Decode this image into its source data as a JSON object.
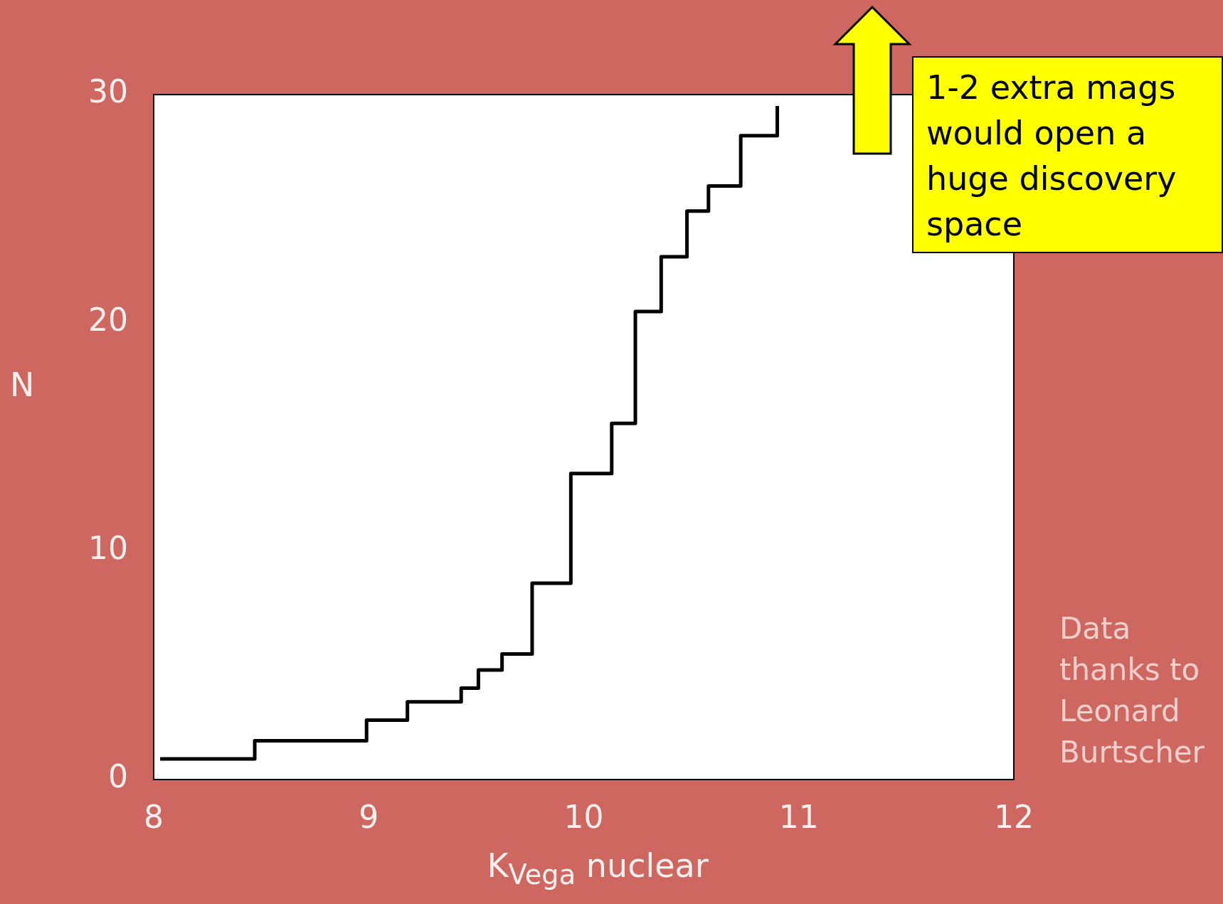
{
  "chart_data": {
    "type": "step",
    "xlabel": "K$_{Vega}$ nuclear",
    "ylabel": "N",
    "x": [
      8.03,
      8.47,
      8.99,
      9.18,
      9.43,
      9.51,
      9.62,
      9.76,
      9.94,
      10.13,
      10.24,
      10.36,
      10.48,
      10.58,
      10.73,
      10.9
    ],
    "series": [
      {
        "color": "#000000",
        "values": [
          0.9,
          1.7,
          2.6,
          3.4,
          4.0,
          4.8,
          5.5,
          8.6,
          13.4,
          15.6,
          20.5,
          22.9,
          24.9,
          26.0,
          28.2,
          29.5
        ]
      }
    ],
    "xlim": [
      8,
      12
    ],
    "xticks": [
      8,
      9,
      10,
      11,
      12
    ],
    "ylim": [
      0,
      30
    ],
    "yticks": [
      0,
      10,
      20,
      30
    ],
    "grid": false,
    "legend": false,
    "marker": "none",
    "line_style": "solid",
    "annotations": [
      "1-2 extra mags would open a huge discovery space",
      "Data thanks to Leonard Burtscher"
    ]
  }
}
